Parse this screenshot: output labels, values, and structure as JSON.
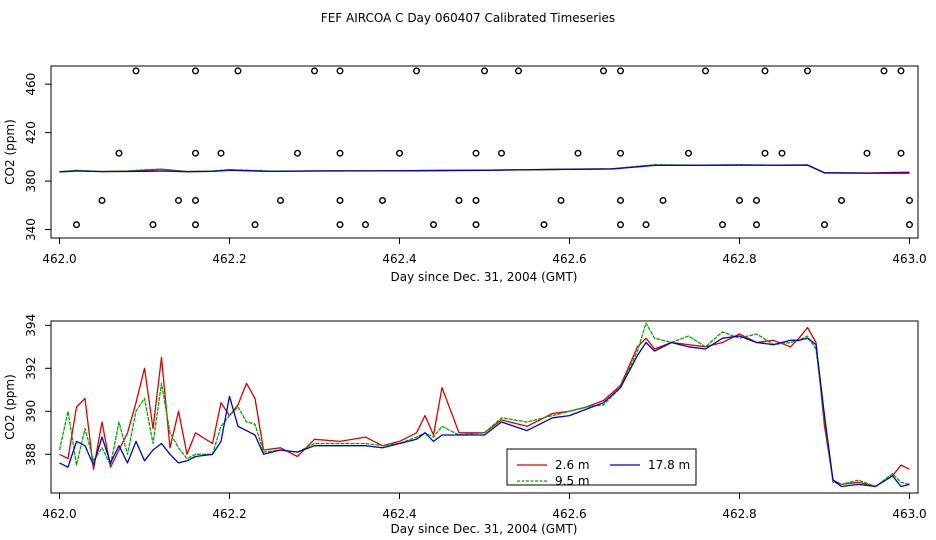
{
  "title": "FEF AIRCOA C  Day 060407  Calibrated Timeseries",
  "chart_data": [
    {
      "type": "scatter",
      "xlabel": "Day since Dec. 31, 2004 (GMT)",
      "ylabel": "CO2 (ppm)",
      "xlim": [
        461.99,
        463.01
      ],
      "ylim": [
        333,
        475
      ],
      "xticks": [
        "462.0",
        "462.2",
        "462.4",
        "462.6",
        "462.8",
        "463.0"
      ],
      "yticks": [
        "340",
        "380",
        "420",
        "460"
      ],
      "grid": false,
      "colors": {
        "2.6 m": "#dd0000",
        "9.5 m": "#00aa00",
        "17.8 m": "#0000cc",
        "points": "#000000"
      },
      "points_x": [
        462.09,
        462.16,
        462.21,
        462.3,
        462.33,
        462.42,
        462.5,
        462.54,
        462.64,
        462.66,
        462.76,
        462.83,
        462.88,
        462.97,
        462.99,
        462.07,
        462.16,
        462.19,
        462.28,
        462.33,
        462.4,
        462.49,
        462.52,
        462.61,
        462.66,
        462.74,
        462.83,
        462.85,
        462.95,
        462.99,
        462.05,
        462.14,
        462.16,
        462.26,
        462.33,
        462.38,
        462.47,
        462.49,
        462.59,
        462.66,
        462.71,
        462.8,
        462.82,
        462.92,
        463.0,
        462.02,
        462.11,
        462.16,
        462.23,
        462.33,
        462.36,
        462.44,
        462.49,
        462.57,
        462.66,
        462.69,
        462.78,
        462.82,
        462.9,
        463.0
      ],
      "points_y": [
        471,
        471,
        471,
        471,
        471,
        471,
        471,
        471,
        471,
        471,
        471,
        471,
        471,
        471,
        471,
        403,
        403,
        403,
        403,
        403,
        403,
        403,
        403,
        403,
        403,
        403,
        403,
        403,
        403,
        403,
        364,
        364,
        364,
        364,
        364,
        364,
        364,
        364,
        364,
        364,
        364,
        364,
        364,
        364,
        364,
        344,
        344,
        344,
        344,
        344,
        344,
        344,
        344,
        344,
        344,
        344,
        344,
        344,
        344,
        344
      ],
      "line_x": [
        462.0,
        462.02,
        462.05,
        462.08,
        462.1,
        462.12,
        462.15,
        462.18,
        462.2,
        462.25,
        462.3,
        462.4,
        462.5,
        462.6,
        462.65,
        462.7,
        462.75,
        462.8,
        462.85,
        462.88,
        462.9,
        462.95,
        463.0
      ],
      "series": [
        {
          "name": "2.6 m",
          "values": [
            387.6,
            388.6,
            387.9,
            388.3,
            388.8,
            389.7,
            387.9,
            388.1,
            388.9,
            388.0,
            388.4,
            388.6,
            389.0,
            389.8,
            390.1,
            393.2,
            393.0,
            393.1,
            393.1,
            393.3,
            386.8,
            386.7,
            387.4
          ]
        },
        {
          "name": "9.5 m",
          "values": [
            387.8,
            388.9,
            387.9,
            388.2,
            389.4,
            389.9,
            387.8,
            388.3,
            389.4,
            388.2,
            388.3,
            388.6,
            389.0,
            389.7,
            390.1,
            393.5,
            393.1,
            393.4,
            393.0,
            393.0,
            386.7,
            386.6,
            386.6
          ]
        },
        {
          "name": "17.8 m",
          "values": [
            387.5,
            388.3,
            387.8,
            387.9,
            388.1,
            388.3,
            387.7,
            388.0,
            389.1,
            388.0,
            388.3,
            388.5,
            388.9,
            389.7,
            390.0,
            392.9,
            393.0,
            393.3,
            393.1,
            393.3,
            386.8,
            386.6,
            386.6
          ]
        }
      ]
    },
    {
      "type": "line",
      "xlabel": "Day since Dec. 31, 2004 (GMT)",
      "ylabel": "CO2 (ppm)",
      "xlim": [
        461.99,
        463.01
      ],
      "ylim": [
        386.2,
        394.2
      ],
      "xticks": [
        "462.0",
        "462.2",
        "462.4",
        "462.6",
        "462.8",
        "463.0"
      ],
      "yticks": [
        "388",
        "390",
        "392",
        "394"
      ],
      "grid": false,
      "legend": "bottom-center",
      "x": [
        462.0,
        462.01,
        462.02,
        462.03,
        462.04,
        462.05,
        462.06,
        462.07,
        462.08,
        462.09,
        462.1,
        462.11,
        462.12,
        462.13,
        462.14,
        462.15,
        462.16,
        462.18,
        462.19,
        462.2,
        462.21,
        462.22,
        462.23,
        462.24,
        462.26,
        462.28,
        462.3,
        462.33,
        462.36,
        462.38,
        462.4,
        462.42,
        462.43,
        462.44,
        462.45,
        462.47,
        462.5,
        462.52,
        462.55,
        462.58,
        462.6,
        462.62,
        462.64,
        462.66,
        462.68,
        462.69,
        462.7,
        462.72,
        462.74,
        462.76,
        462.78,
        462.8,
        462.82,
        462.84,
        462.86,
        462.87,
        462.88,
        462.89,
        462.9,
        462.91,
        462.92,
        462.94,
        462.96,
        462.98,
        462.99,
        463.0
      ],
      "series": [
        {
          "name": "2.6 m",
          "color": "#dd0000",
          "values": [
            388.0,
            387.8,
            390.2,
            390.6,
            387.3,
            389.5,
            387.4,
            388.2,
            389.0,
            390.4,
            392.0,
            389.2,
            392.5,
            388.3,
            390.0,
            388.0,
            389.0,
            388.5,
            390.4,
            389.8,
            390.3,
            391.3,
            390.6,
            388.2,
            388.3,
            387.9,
            388.7,
            388.6,
            388.8,
            388.4,
            388.6,
            389.0,
            389.8,
            388.9,
            391.1,
            389.0,
            389.0,
            389.6,
            389.3,
            389.9,
            390.0,
            390.2,
            390.5,
            391.2,
            393.0,
            393.4,
            392.9,
            393.2,
            393.1,
            393.0,
            393.2,
            393.6,
            393.2,
            393.3,
            393.0,
            393.4,
            393.9,
            393.2,
            389.3,
            386.8,
            386.6,
            386.7,
            386.5,
            387.0,
            387.5,
            387.3
          ]
        },
        {
          "name": "9.5 m",
          "color": "#00aa00",
          "values": [
            388.2,
            390.0,
            387.5,
            389.2,
            387.7,
            388.3,
            387.5,
            389.5,
            388.0,
            390.0,
            390.6,
            388.5,
            391.3,
            389.0,
            388.3,
            387.8,
            388.0,
            388.0,
            389.3,
            389.8,
            390.2,
            389.5,
            389.4,
            388.1,
            388.2,
            388.1,
            388.5,
            388.5,
            388.5,
            388.4,
            388.5,
            388.8,
            389.0,
            388.8,
            389.3,
            388.9,
            389.0,
            389.7,
            389.5,
            389.8,
            390.0,
            390.2,
            390.3,
            391.1,
            392.8,
            394.1,
            393.4,
            393.2,
            393.5,
            393.0,
            393.7,
            393.4,
            393.6,
            393.1,
            393.2,
            393.3,
            393.5,
            392.9,
            389.6,
            386.7,
            386.6,
            386.8,
            386.5,
            387.1,
            386.7,
            386.6
          ]
        },
        {
          "name": "17.8 m",
          "color": "#0000cc",
          "values": [
            387.6,
            387.4,
            388.6,
            388.4,
            387.5,
            388.8,
            387.6,
            388.4,
            387.6,
            388.6,
            387.7,
            388.2,
            388.5,
            388.0,
            387.6,
            387.7,
            387.9,
            388.0,
            388.6,
            390.7,
            389.3,
            389.1,
            388.9,
            388.0,
            388.2,
            388.1,
            388.4,
            388.4,
            388.4,
            388.3,
            388.5,
            388.7,
            389.0,
            388.6,
            388.9,
            388.9,
            388.9,
            389.5,
            389.1,
            389.7,
            389.8,
            390.1,
            390.4,
            391.1,
            392.6,
            393.2,
            392.8,
            393.2,
            393.0,
            392.9,
            393.4,
            393.5,
            393.2,
            393.1,
            393.3,
            393.3,
            393.4,
            393.1,
            389.8,
            386.8,
            386.5,
            386.6,
            386.5,
            387.0,
            386.5,
            386.6
          ]
        }
      ]
    }
  ]
}
